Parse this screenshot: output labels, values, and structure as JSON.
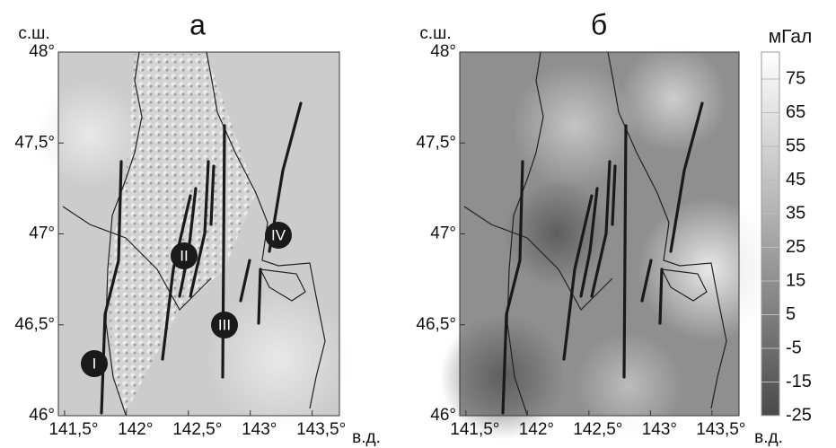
{
  "panels": [
    {
      "title": "а",
      "lat_label": "с.ш.",
      "lon_label": "в.д.",
      "lat_lim": [
        46,
        48
      ],
      "lon_lim": [
        141.45,
        143.72
      ],
      "lat_ticks": [
        {
          "value": 48,
          "label": "48°"
        },
        {
          "value": 47.5,
          "label": "47,5°"
        },
        {
          "value": 47,
          "label": "47°"
        },
        {
          "value": 46.5,
          "label": "46,5°"
        },
        {
          "value": 46,
          "label": "46°"
        }
      ],
      "lon_ticks": [
        {
          "value": 141.5,
          "label": "141,5°"
        },
        {
          "value": 142,
          "label": "142°"
        },
        {
          "value": 142.5,
          "label": "142,5°"
        },
        {
          "value": 143,
          "label": "143°"
        },
        {
          "value": 143.5,
          "label": "143,5°"
        }
      ],
      "markers": [
        "I",
        "II",
        "III",
        "IV"
      ]
    },
    {
      "title": "б",
      "lat_label": "с.ш.",
      "lon_label": "в.д.",
      "lat_lim": [
        46,
        48
      ],
      "lon_lim": [
        141.45,
        143.72
      ],
      "lat_ticks": [
        {
          "value": 48,
          "label": "48°"
        },
        {
          "value": 47.5,
          "label": "47,5°"
        },
        {
          "value": 47,
          "label": "47°"
        },
        {
          "value": 46.5,
          "label": "46,5°"
        },
        {
          "value": 46,
          "label": "46°"
        }
      ],
      "lon_ticks": [
        {
          "value": 141.5,
          "label": "141,5°"
        },
        {
          "value": 142,
          "label": "142°"
        },
        {
          "value": 142.5,
          "label": "142,5°"
        },
        {
          "value": 143,
          "label": "143°"
        },
        {
          "value": 143.5,
          "label": "143,5°"
        }
      ]
    }
  ],
  "colorbar": {
    "title": "мГал",
    "lim": [
      -25,
      83
    ],
    "ticks": [
      75,
      65,
      55,
      45,
      35,
      25,
      15,
      5,
      -5,
      -15,
      -25
    ]
  }
}
